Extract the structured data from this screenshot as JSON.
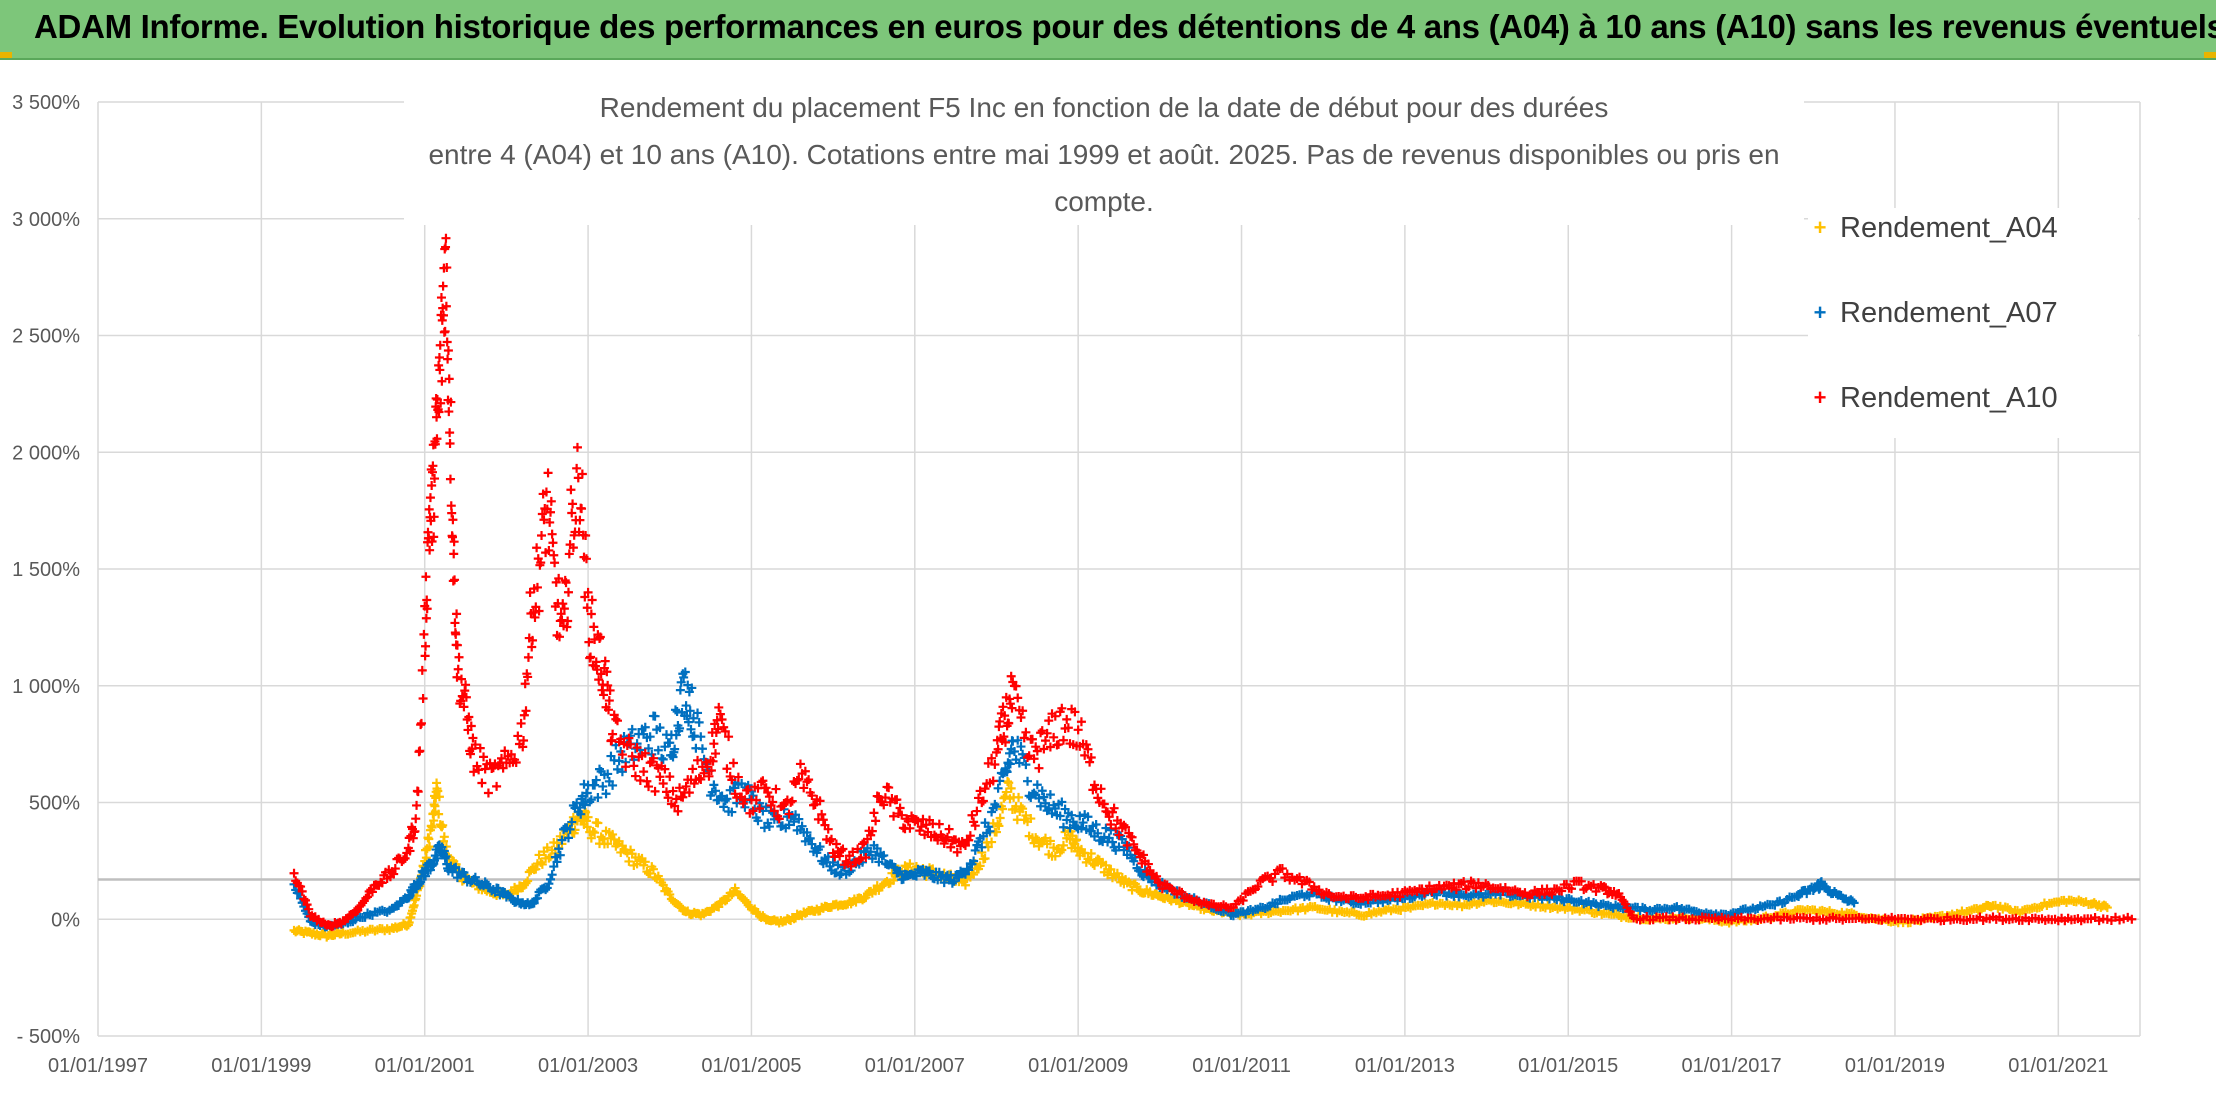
{
  "banner": {
    "title": "ADAM Informe. Evolution historique des performances en euros pour des détentions de 4 ans (A04) à 10 ans (A10) sans les revenus éventuels"
  },
  "colors": {
    "banner_bg": "#7dc67a",
    "a04": "#ffc000",
    "a07": "#0070c0",
    "a10": "#ff0000",
    "grid": "#d9d9d9",
    "reference_line": "#bfbfbf"
  },
  "chart_data": {
    "type": "scatter",
    "title_line1": "Rendement du placement F5 Inc en fonction de la date de début pour des durées",
    "title_line2": "entre 4 (A04) et 10 ans (A10). Cotations entre mai 1999 et août. 2025. Pas de revenus disponibles ou pris en compte.",
    "xlabel": "",
    "ylabel": "",
    "x_ticks": [
      "01/01/1997",
      "01/01/1999",
      "01/01/2001",
      "01/01/2003",
      "01/01/2005",
      "01/01/2007",
      "01/01/2009",
      "01/01/2011",
      "01/01/2013",
      "01/01/2015",
      "01/01/2017",
      "01/01/2019",
      "01/01/2021"
    ],
    "x_range_years": [
      1997.0,
      2022.0
    ],
    "y_ticks": [
      "- 500%",
      "0%",
      "500%",
      "1 000%",
      "1 500%",
      "2 000%",
      "2 500%",
      "3 000%",
      "3 500%"
    ],
    "y_range_percent": [
      -500,
      3500
    ],
    "reference_line_percent": 170,
    "grid": true,
    "legend_position": "right",
    "series": [
      {
        "name": "Rendement_A04",
        "color": "#ffc000",
        "points": [
          [
            1999.4,
            -50
          ],
          [
            1999.6,
            -60
          ],
          [
            1999.8,
            -70
          ],
          [
            2000.0,
            -60
          ],
          [
            2000.3,
            -50
          ],
          [
            2000.6,
            -40
          ],
          [
            2000.8,
            -20
          ],
          [
            2000.9,
            100
          ],
          [
            2001.0,
            250
          ],
          [
            2001.1,
            420
          ],
          [
            2001.15,
            550
          ],
          [
            2001.25,
            300
          ],
          [
            2001.4,
            200
          ],
          [
            2001.6,
            150
          ],
          [
            2001.8,
            120
          ],
          [
            2002.0,
            100
          ],
          [
            2002.2,
            150
          ],
          [
            2002.4,
            250
          ],
          [
            2002.6,
            300
          ],
          [
            2002.8,
            400
          ],
          [
            2002.9,
            450
          ],
          [
            2003.0,
            400
          ],
          [
            2003.2,
            350
          ],
          [
            2003.4,
            300
          ],
          [
            2003.6,
            250
          ],
          [
            2003.8,
            200
          ],
          [
            2004.0,
            100
          ],
          [
            2004.2,
            30
          ],
          [
            2004.4,
            20
          ],
          [
            2004.6,
            60
          ],
          [
            2004.8,
            120
          ],
          [
            2005.0,
            50
          ],
          [
            2005.2,
            -10
          ],
          [
            2005.4,
            -10
          ],
          [
            2005.6,
            20
          ],
          [
            2005.8,
            40
          ],
          [
            2006.0,
            60
          ],
          [
            2006.2,
            70
          ],
          [
            2006.4,
            100
          ],
          [
            2006.6,
            150
          ],
          [
            2006.8,
            200
          ],
          [
            2007.0,
            220
          ],
          [
            2007.2,
            200
          ],
          [
            2007.4,
            180
          ],
          [
            2007.6,
            150
          ],
          [
            2007.8,
            250
          ],
          [
            2008.0,
            400
          ],
          [
            2008.15,
            550
          ],
          [
            2008.3,
            450
          ],
          [
            2008.5,
            350
          ],
          [
            2008.7,
            300
          ],
          [
            2008.9,
            350
          ],
          [
            2009.0,
            300
          ],
          [
            2009.2,
            250
          ],
          [
            2009.4,
            200
          ],
          [
            2009.6,
            150
          ],
          [
            2009.8,
            120
          ],
          [
            2010.0,
            100
          ],
          [
            2010.2,
            80
          ],
          [
            2010.4,
            60
          ],
          [
            2010.6,
            40
          ],
          [
            2010.8,
            30
          ],
          [
            2011.0,
            20
          ],
          [
            2011.3,
            30
          ],
          [
            2011.6,
            40
          ],
          [
            2011.9,
            50
          ],
          [
            2012.2,
            30
          ],
          [
            2012.5,
            20
          ],
          [
            2012.8,
            40
          ],
          [
            2013.1,
            50
          ],
          [
            2013.4,
            70
          ],
          [
            2013.7,
            60
          ],
          [
            2014.0,
            80
          ],
          [
            2014.3,
            70
          ],
          [
            2014.6,
            60
          ],
          [
            2014.9,
            50
          ],
          [
            2015.2,
            40
          ],
          [
            2015.5,
            20
          ],
          [
            2015.8,
            10
          ],
          [
            2016.1,
            0
          ],
          [
            2016.4,
            10
          ],
          [
            2016.7,
            0
          ],
          [
            2017.0,
            -10
          ],
          [
            2017.3,
            0
          ],
          [
            2017.6,
            20
          ],
          [
            2017.9,
            40
          ],
          [
            2018.2,
            30
          ],
          [
            2018.5,
            20
          ],
          [
            2018.8,
            0
          ],
          [
            2019.1,
            -10
          ],
          [
            2019.4,
            0
          ],
          [
            2019.7,
            20
          ],
          [
            2020.0,
            40
          ],
          [
            2020.2,
            60
          ],
          [
            2020.5,
            30
          ],
          [
            2020.8,
            60
          ],
          [
            2021.1,
            80
          ],
          [
            2021.4,
            70
          ],
          [
            2021.6,
            50
          ]
        ]
      },
      {
        "name": "Rendement_A07",
        "color": "#0070c0",
        "points": [
          [
            1999.4,
            150
          ],
          [
            1999.6,
            -10
          ],
          [
            1999.8,
            -30
          ],
          [
            2000.0,
            -20
          ],
          [
            2000.3,
            20
          ],
          [
            2000.6,
            40
          ],
          [
            2000.8,
            100
          ],
          [
            2000.9,
            150
          ],
          [
            2001.0,
            200
          ],
          [
            2001.1,
            250
          ],
          [
            2001.2,
            300
          ],
          [
            2001.3,
            220
          ],
          [
            2001.5,
            180
          ],
          [
            2001.7,
            150
          ],
          [
            2001.9,
            120
          ],
          [
            2002.1,
            80
          ],
          [
            2002.3,
            60
          ],
          [
            2002.5,
            150
          ],
          [
            2002.7,
            350
          ],
          [
            2002.9,
            500
          ],
          [
            2003.0,
            550
          ],
          [
            2003.2,
            600
          ],
          [
            2003.4,
            700
          ],
          [
            2003.6,
            750
          ],
          [
            2003.8,
            800
          ],
          [
            2004.0,
            700
          ],
          [
            2004.1,
            900
          ],
          [
            2004.2,
            1000
          ],
          [
            2004.3,
            850
          ],
          [
            2004.5,
            600
          ],
          [
            2004.7,
            500
          ],
          [
            2004.9,
            550
          ],
          [
            2005.1,
            450
          ],
          [
            2005.3,
            400
          ],
          [
            2005.5,
            450
          ],
          [
            2005.7,
            350
          ],
          [
            2005.9,
            250
          ],
          [
            2006.1,
            200
          ],
          [
            2006.3,
            250
          ],
          [
            2006.5,
            300
          ],
          [
            2006.7,
            220
          ],
          [
            2006.9,
            180
          ],
          [
            2007.1,
            200
          ],
          [
            2007.3,
            180
          ],
          [
            2007.5,
            170
          ],
          [
            2007.7,
            250
          ],
          [
            2007.9,
            400
          ],
          [
            2008.1,
            600
          ],
          [
            2008.2,
            750
          ],
          [
            2008.4,
            600
          ],
          [
            2008.6,
            500
          ],
          [
            2008.8,
            450
          ],
          [
            2009.0,
            420
          ],
          [
            2009.2,
            380
          ],
          [
            2009.4,
            350
          ],
          [
            2009.6,
            300
          ],
          [
            2009.8,
            200
          ],
          [
            2010.0,
            150
          ],
          [
            2010.3,
            100
          ],
          [
            2010.6,
            60
          ],
          [
            2010.9,
            20
          ],
          [
            2011.2,
            40
          ],
          [
            2011.5,
            80
          ],
          [
            2011.8,
            110
          ],
          [
            2012.1,
            90
          ],
          [
            2012.4,
            70
          ],
          [
            2012.7,
            80
          ],
          [
            2013.0,
            90
          ],
          [
            2013.3,
            120
          ],
          [
            2013.6,
            110
          ],
          [
            2013.9,
            100
          ],
          [
            2014.2,
            110
          ],
          [
            2014.5,
            100
          ],
          [
            2014.8,
            90
          ],
          [
            2015.1,
            80
          ],
          [
            2015.4,
            60
          ],
          [
            2015.7,
            50
          ],
          [
            2016.0,
            40
          ],
          [
            2016.3,
            50
          ],
          [
            2016.6,
            30
          ],
          [
            2016.9,
            20
          ],
          [
            2017.2,
            40
          ],
          [
            2017.5,
            60
          ],
          [
            2017.8,
            100
          ],
          [
            2018.0,
            130
          ],
          [
            2018.1,
            150
          ],
          [
            2018.3,
            100
          ],
          [
            2018.5,
            70
          ]
        ]
      },
      {
        "name": "Rendement_A10",
        "color": "#ff0000",
        "points": [
          [
            1999.4,
            200
          ],
          [
            1999.6,
            20
          ],
          [
            1999.8,
            -30
          ],
          [
            2000.0,
            -10
          ],
          [
            2000.2,
            50
          ],
          [
            2000.4,
            150
          ],
          [
            2000.6,
            200
          ],
          [
            2000.8,
            300
          ],
          [
            2000.9,
            450
          ],
          [
            2001.0,
            1200
          ],
          [
            2001.05,
            1700
          ],
          [
            2001.1,
            1800
          ],
          [
            2001.15,
            2100
          ],
          [
            2001.2,
            2400
          ],
          [
            2001.25,
            2850
          ],
          [
            2001.3,
            2300
          ],
          [
            2001.35,
            1600
          ],
          [
            2001.4,
            1100
          ],
          [
            2001.5,
            900
          ],
          [
            2001.6,
            700
          ],
          [
            2001.8,
            600
          ],
          [
            2002.0,
            650
          ],
          [
            2002.2,
            800
          ],
          [
            2002.3,
            1300
          ],
          [
            2002.4,
            1500
          ],
          [
            2002.5,
            1800
          ],
          [
            2002.6,
            1400
          ],
          [
            2002.7,
            1200
          ],
          [
            2002.8,
            1700
          ],
          [
            2002.9,
            1900
          ],
          [
            2003.0,
            1300
          ],
          [
            2003.1,
            1150
          ],
          [
            2003.2,
            1050
          ],
          [
            2003.3,
            800
          ],
          [
            2003.5,
            700
          ],
          [
            2003.7,
            650
          ],
          [
            2003.9,
            600
          ],
          [
            2004.1,
            500
          ],
          [
            2004.3,
            600
          ],
          [
            2004.5,
            700
          ],
          [
            2004.6,
            850
          ],
          [
            2004.8,
            600
          ],
          [
            2005.0,
            500
          ],
          [
            2005.2,
            550
          ],
          [
            2005.4,
            450
          ],
          [
            2005.6,
            600
          ],
          [
            2005.8,
            500
          ],
          [
            2006.0,
            300
          ],
          [
            2006.2,
            250
          ],
          [
            2006.4,
            300
          ],
          [
            2006.6,
            550
          ],
          [
            2006.8,
            450
          ],
          [
            2007.0,
            400
          ],
          [
            2007.2,
            380
          ],
          [
            2007.4,
            350
          ],
          [
            2007.6,
            300
          ],
          [
            2007.8,
            500
          ],
          [
            2008.0,
            700
          ],
          [
            2008.1,
            850
          ],
          [
            2008.2,
            950
          ],
          [
            2008.4,
            700
          ],
          [
            2008.6,
            750
          ],
          [
            2008.8,
            850
          ],
          [
            2009.0,
            800
          ],
          [
            2009.2,
            600
          ],
          [
            2009.4,
            450
          ],
          [
            2009.6,
            350
          ],
          [
            2009.8,
            250
          ],
          [
            2010.0,
            150
          ],
          [
            2010.3,
            100
          ],
          [
            2010.6,
            60
          ],
          [
            2010.9,
            50
          ],
          [
            2011.2,
            150
          ],
          [
            2011.5,
            200
          ],
          [
            2011.8,
            150
          ],
          [
            2012.1,
            100
          ],
          [
            2012.4,
            90
          ],
          [
            2012.7,
            100
          ],
          [
            2013.0,
            110
          ],
          [
            2013.3,
            130
          ],
          [
            2013.6,
            140
          ],
          [
            2013.9,
            150
          ],
          [
            2014.2,
            130
          ],
          [
            2014.5,
            110
          ],
          [
            2014.8,
            120
          ],
          [
            2015.1,
            150
          ],
          [
            2015.4,
            130
          ],
          [
            2015.6,
            110
          ],
          [
            2015.8,
            5
          ],
          [
            2016.2,
            3
          ],
          [
            2016.6,
            2
          ],
          [
            2017.0,
            0
          ],
          [
            2017.4,
            2
          ],
          [
            2017.8,
            3
          ],
          [
            2018.2,
            2
          ],
          [
            2018.6,
            0
          ],
          [
            2019.0,
            2
          ],
          [
            2019.4,
            0
          ],
          [
            2019.8,
            2
          ],
          [
            2020.2,
            3
          ],
          [
            2020.6,
            2
          ],
          [
            2021.0,
            0
          ],
          [
            2021.4,
            2
          ],
          [
            2021.9,
            0
          ]
        ]
      }
    ]
  }
}
